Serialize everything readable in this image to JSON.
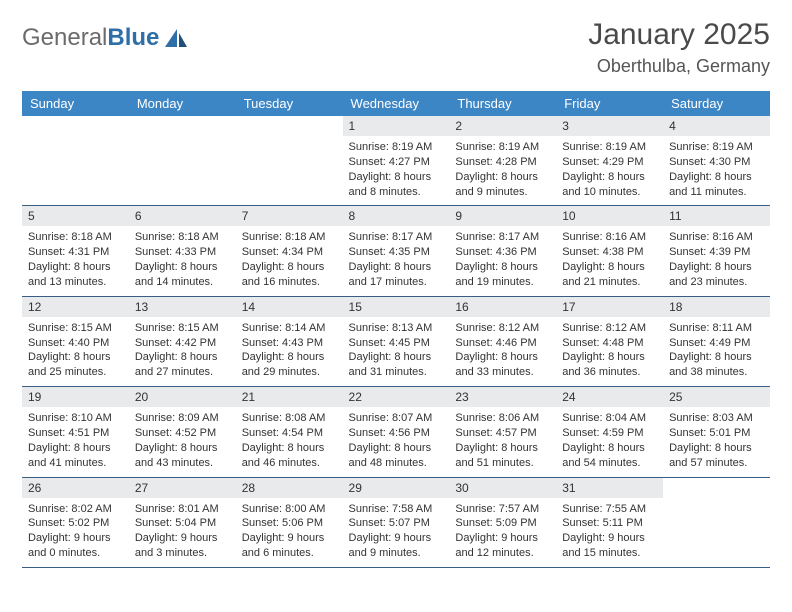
{
  "logo": {
    "textGray": "General",
    "textBlue": "Blue"
  },
  "title": "January 2025",
  "location": "Oberthulba, Germany",
  "daysOfWeek": [
    "Sunday",
    "Monday",
    "Tuesday",
    "Wednesday",
    "Thursday",
    "Friday",
    "Saturday"
  ],
  "colors": {
    "headerBar": "#3d86c6",
    "dayNumBg": "#e9eaec",
    "rowBorder": "#385e84",
    "logoBlue": "#2f6fa8",
    "logoGray": "#6b6b6b"
  },
  "weeks": [
    [
      {
        "num": "",
        "sunrise": "",
        "sunset": "",
        "daylight": ""
      },
      {
        "num": "",
        "sunrise": "",
        "sunset": "",
        "daylight": ""
      },
      {
        "num": "",
        "sunrise": "",
        "sunset": "",
        "daylight": ""
      },
      {
        "num": "1",
        "sunrise": "Sunrise: 8:19 AM",
        "sunset": "Sunset: 4:27 PM",
        "daylight": "Daylight: 8 hours and 8 minutes."
      },
      {
        "num": "2",
        "sunrise": "Sunrise: 8:19 AM",
        "sunset": "Sunset: 4:28 PM",
        "daylight": "Daylight: 8 hours and 9 minutes."
      },
      {
        "num": "3",
        "sunrise": "Sunrise: 8:19 AM",
        "sunset": "Sunset: 4:29 PM",
        "daylight": "Daylight: 8 hours and 10 minutes."
      },
      {
        "num": "4",
        "sunrise": "Sunrise: 8:19 AM",
        "sunset": "Sunset: 4:30 PM",
        "daylight": "Daylight: 8 hours and 11 minutes."
      }
    ],
    [
      {
        "num": "5",
        "sunrise": "Sunrise: 8:18 AM",
        "sunset": "Sunset: 4:31 PM",
        "daylight": "Daylight: 8 hours and 13 minutes."
      },
      {
        "num": "6",
        "sunrise": "Sunrise: 8:18 AM",
        "sunset": "Sunset: 4:33 PM",
        "daylight": "Daylight: 8 hours and 14 minutes."
      },
      {
        "num": "7",
        "sunrise": "Sunrise: 8:18 AM",
        "sunset": "Sunset: 4:34 PM",
        "daylight": "Daylight: 8 hours and 16 minutes."
      },
      {
        "num": "8",
        "sunrise": "Sunrise: 8:17 AM",
        "sunset": "Sunset: 4:35 PM",
        "daylight": "Daylight: 8 hours and 17 minutes."
      },
      {
        "num": "9",
        "sunrise": "Sunrise: 8:17 AM",
        "sunset": "Sunset: 4:36 PM",
        "daylight": "Daylight: 8 hours and 19 minutes."
      },
      {
        "num": "10",
        "sunrise": "Sunrise: 8:16 AM",
        "sunset": "Sunset: 4:38 PM",
        "daylight": "Daylight: 8 hours and 21 minutes."
      },
      {
        "num": "11",
        "sunrise": "Sunrise: 8:16 AM",
        "sunset": "Sunset: 4:39 PM",
        "daylight": "Daylight: 8 hours and 23 minutes."
      }
    ],
    [
      {
        "num": "12",
        "sunrise": "Sunrise: 8:15 AM",
        "sunset": "Sunset: 4:40 PM",
        "daylight": "Daylight: 8 hours and 25 minutes."
      },
      {
        "num": "13",
        "sunrise": "Sunrise: 8:15 AM",
        "sunset": "Sunset: 4:42 PM",
        "daylight": "Daylight: 8 hours and 27 minutes."
      },
      {
        "num": "14",
        "sunrise": "Sunrise: 8:14 AM",
        "sunset": "Sunset: 4:43 PM",
        "daylight": "Daylight: 8 hours and 29 minutes."
      },
      {
        "num": "15",
        "sunrise": "Sunrise: 8:13 AM",
        "sunset": "Sunset: 4:45 PM",
        "daylight": "Daylight: 8 hours and 31 minutes."
      },
      {
        "num": "16",
        "sunrise": "Sunrise: 8:12 AM",
        "sunset": "Sunset: 4:46 PM",
        "daylight": "Daylight: 8 hours and 33 minutes."
      },
      {
        "num": "17",
        "sunrise": "Sunrise: 8:12 AM",
        "sunset": "Sunset: 4:48 PM",
        "daylight": "Daylight: 8 hours and 36 minutes."
      },
      {
        "num": "18",
        "sunrise": "Sunrise: 8:11 AM",
        "sunset": "Sunset: 4:49 PM",
        "daylight": "Daylight: 8 hours and 38 minutes."
      }
    ],
    [
      {
        "num": "19",
        "sunrise": "Sunrise: 8:10 AM",
        "sunset": "Sunset: 4:51 PM",
        "daylight": "Daylight: 8 hours and 41 minutes."
      },
      {
        "num": "20",
        "sunrise": "Sunrise: 8:09 AM",
        "sunset": "Sunset: 4:52 PM",
        "daylight": "Daylight: 8 hours and 43 minutes."
      },
      {
        "num": "21",
        "sunrise": "Sunrise: 8:08 AM",
        "sunset": "Sunset: 4:54 PM",
        "daylight": "Daylight: 8 hours and 46 minutes."
      },
      {
        "num": "22",
        "sunrise": "Sunrise: 8:07 AM",
        "sunset": "Sunset: 4:56 PM",
        "daylight": "Daylight: 8 hours and 48 minutes."
      },
      {
        "num": "23",
        "sunrise": "Sunrise: 8:06 AM",
        "sunset": "Sunset: 4:57 PM",
        "daylight": "Daylight: 8 hours and 51 minutes."
      },
      {
        "num": "24",
        "sunrise": "Sunrise: 8:04 AM",
        "sunset": "Sunset: 4:59 PM",
        "daylight": "Daylight: 8 hours and 54 minutes."
      },
      {
        "num": "25",
        "sunrise": "Sunrise: 8:03 AM",
        "sunset": "Sunset: 5:01 PM",
        "daylight": "Daylight: 8 hours and 57 minutes."
      }
    ],
    [
      {
        "num": "26",
        "sunrise": "Sunrise: 8:02 AM",
        "sunset": "Sunset: 5:02 PM",
        "daylight": "Daylight: 9 hours and 0 minutes."
      },
      {
        "num": "27",
        "sunrise": "Sunrise: 8:01 AM",
        "sunset": "Sunset: 5:04 PM",
        "daylight": "Daylight: 9 hours and 3 minutes."
      },
      {
        "num": "28",
        "sunrise": "Sunrise: 8:00 AM",
        "sunset": "Sunset: 5:06 PM",
        "daylight": "Daylight: 9 hours and 6 minutes."
      },
      {
        "num": "29",
        "sunrise": "Sunrise: 7:58 AM",
        "sunset": "Sunset: 5:07 PM",
        "daylight": "Daylight: 9 hours and 9 minutes."
      },
      {
        "num": "30",
        "sunrise": "Sunrise: 7:57 AM",
        "sunset": "Sunset: 5:09 PM",
        "daylight": "Daylight: 9 hours and 12 minutes."
      },
      {
        "num": "31",
        "sunrise": "Sunrise: 7:55 AM",
        "sunset": "Sunset: 5:11 PM",
        "daylight": "Daylight: 9 hours and 15 minutes."
      },
      {
        "num": "",
        "sunrise": "",
        "sunset": "",
        "daylight": ""
      }
    ]
  ]
}
